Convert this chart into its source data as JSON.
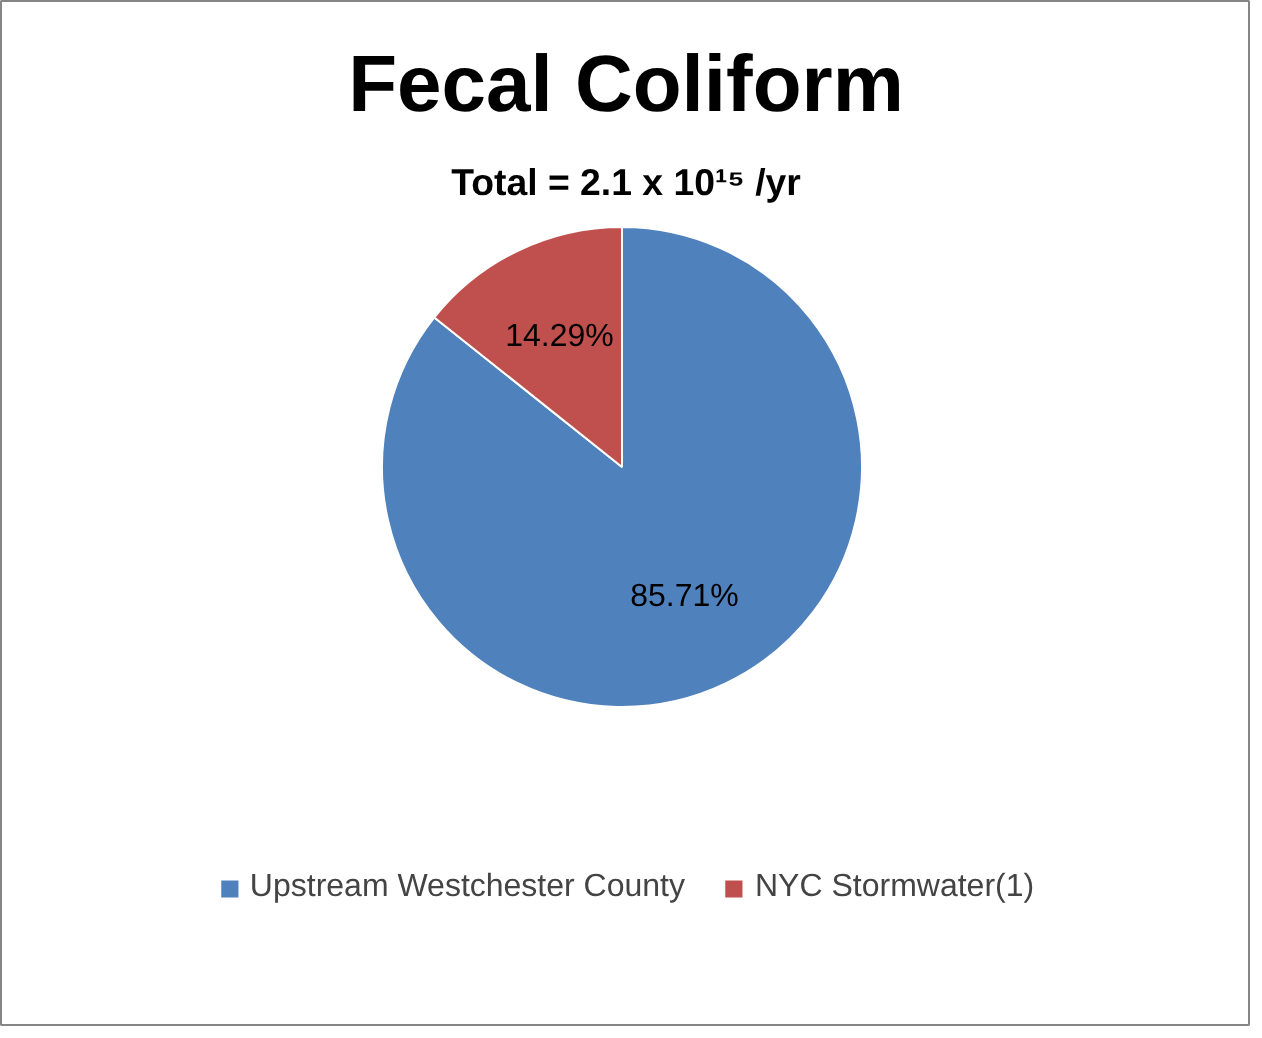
{
  "chart_data": {
    "type": "pie",
    "title": "Fecal Coliform",
    "subtitle": "Total = 2.1 x 10¹⁵ /yr",
    "categories": [
      "Upstream Westchester County",
      "NYC Stormwater(1)"
    ],
    "values": [
      85.71,
      14.29
    ],
    "colors": [
      "#4f81bd",
      "#c0504d"
    ],
    "value_labels": [
      "85.71%",
      "14.29%"
    ],
    "legend": "bottom"
  }
}
